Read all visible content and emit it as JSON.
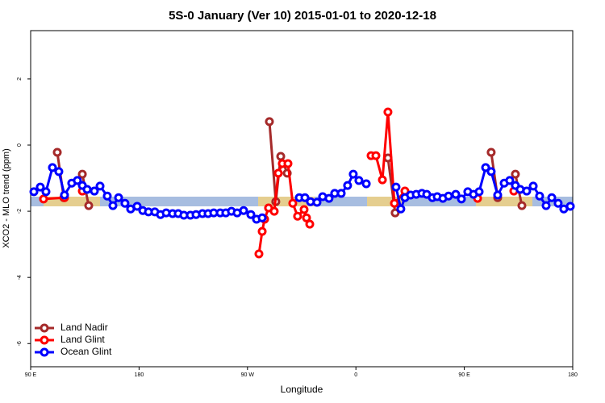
{
  "chart_data": {
    "type": "line",
    "title": "5S-0 January (Ver 10)   2015-01-01 to 2020-12-18",
    "x_label": "Longitude",
    "y_label": "XCO2 - MLO trend (ppm)",
    "xlim": [
      90,
      540
    ],
    "ylim": [
      -6.7,
      3.46
    ],
    "xticks": [
      {
        "value": 90,
        "label": "90 E"
      },
      180,
      {
        "value": 270,
        "label": "90 W"
      },
      {
        "value": 360,
        "label": "0"
      },
      {
        "value": 450,
        "label": "90 E"
      },
      {
        "value": 540,
        "label": "180"
      }
    ],
    "yticks": [
      2,
      0,
      -2,
      -4,
      -6
    ],
    "legend": "bottom-left",
    "series": [
      {
        "name": "Land Nadir",
        "color": "#a52a2a",
        "x": [
          112.1,
          117.5,
          null,
          132.9,
          138.2,
          null,
          288.2,
          293.5,
          297.6,
          303.0,
          null,
          386.6,
          392.6,
          null,
          472.3,
          477.7,
          null,
          492.4,
          497.8
        ],
        "values": [
          -0.22,
          -1.59,
          null,
          -0.88,
          -1.83,
          null,
          0.71,
          -1.71,
          -0.34,
          -0.85,
          null,
          -0.39,
          -2.05,
          null,
          -0.22,
          -1.59,
          null,
          -0.88,
          -1.83
        ]
      },
      {
        "name": "Land Glint",
        "color": "#ff0000",
        "x": [
          100.7,
          118.1,
          null,
          132.9,
          null,
          279.5,
          282.2,
          284.2,
          287.5,
          292.2,
          295.6,
          298.9,
          303.6,
          307.6,
          311.6,
          317.0,
          319.0,
          321.7,
          null,
          372.6,
          376.6,
          382.0,
          386.6,
          392.0,
          400.7,
          null,
          461.0,
          null,
          491.1
        ],
        "values": [
          -1.63,
          -1.59,
          null,
          -1.39,
          null,
          -3.29,
          -2.61,
          -2.24,
          -1.9,
          -2.0,
          -0.85,
          -0.56,
          -0.56,
          -1.76,
          -2.15,
          -1.95,
          -2.2,
          -2.39,
          null,
          -0.32,
          -0.32,
          -1.05,
          1.0,
          -1.76,
          -1.39,
          null,
          -1.61,
          null,
          -1.39
        ]
      },
      {
        "name": "Ocean Glint",
        "color": "#0000ff",
        "x": [
          92.7,
          98.0,
          102.7,
          108.1,
          113.4,
          118.1,
          124.1,
          128.8,
          132.9,
          136.9,
          142.9,
          147.6,
          153.6,
          158.3,
          163.0,
          168.3,
          173.0,
          178.4,
          183.1,
          187.8,
          193.1,
          197.8,
          202.5,
          207.8,
          212.5,
          217.2,
          222.6,
          227.3,
          232.6,
          237.3,
          242.0,
          247.4,
          252.0,
          256.7,
          261.4,
          266.8,
          272.8,
          277.5,
          282.2,
          null,
          313.0,
          317.7,
          322.3,
          327.7,
          332.4,
          337.7,
          342.4,
          347.8,
          353.1,
          357.8,
          362.5,
          368.6,
          null,
          393.3,
          397.3,
          400.7,
          405.4,
          410.1,
          414.8,
          418.8,
          423.5,
          427.5,
          432.2,
          436.9,
          442.9,
          447.6,
          452.9,
          457.6,
          462.3,
          467.7,
          472.3,
          477.7,
          483.1,
          487.7,
          492.4,
          496.4,
          501.8,
          507.2,
          512.5,
          517.9,
          522.6,
          527.9,
          532.6,
          538.0
        ],
        "values": [
          -1.41,
          -1.27,
          -1.41,
          -0.68,
          -0.8,
          -1.51,
          -1.15,
          -1.07,
          -1.22,
          -1.34,
          -1.39,
          -1.24,
          -1.54,
          -1.83,
          -1.59,
          -1.76,
          -1.93,
          -1.85,
          -1.98,
          -2.02,
          -2.02,
          -2.1,
          -2.05,
          -2.07,
          -2.07,
          -2.12,
          -2.12,
          -2.1,
          -2.07,
          -2.07,
          -2.05,
          -2.05,
          -2.05,
          -2.0,
          -2.05,
          -1.98,
          -2.1,
          -2.24,
          -2.2,
          null,
          -1.59,
          -1.59,
          -1.71,
          -1.73,
          -1.56,
          -1.61,
          -1.46,
          -1.46,
          -1.22,
          -0.88,
          -1.07,
          -1.17,
          null,
          -1.27,
          -1.93,
          -1.59,
          -1.51,
          -1.49,
          -1.46,
          -1.49,
          -1.59,
          -1.56,
          -1.61,
          -1.54,
          -1.49,
          -1.63,
          -1.41,
          -1.49,
          -1.41,
          -0.68,
          -0.8,
          -1.51,
          -1.15,
          -1.07,
          -1.22,
          -1.34,
          -1.39,
          -1.24,
          -1.54,
          -1.83,
          -1.59,
          -1.76,
          -1.93,
          -1.85
        ]
      }
    ]
  }
}
